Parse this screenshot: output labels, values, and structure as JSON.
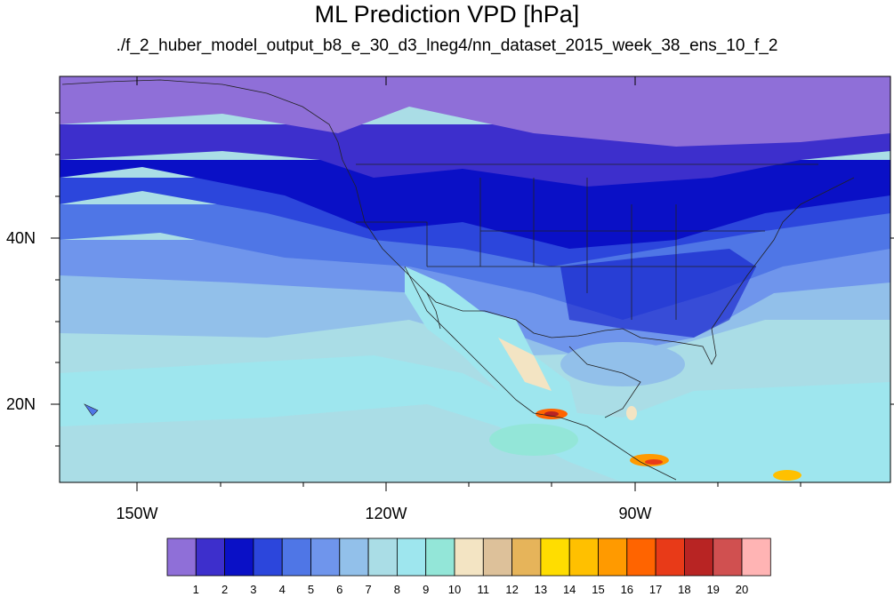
{
  "title": "ML Prediction VPD [hPa]",
  "subtitle": "./f_2_huber_model_output_b8_e_30_d3_lneg4/nn_dataset_2015_week_38_ens_10_f_2",
  "axes": {
    "lat_labels": [
      "40N",
      "20N"
    ],
    "lon_labels": [
      "150W",
      "120W",
      "90W"
    ]
  },
  "colorbar": {
    "labels": [
      "1",
      "2",
      "3",
      "4",
      "5",
      "6",
      "7",
      "8",
      "9",
      "10",
      "11",
      "12",
      "13",
      "14",
      "15",
      "16",
      "17",
      "18",
      "19",
      "20"
    ],
    "colors": [
      "#8f6fd8",
      "#3d2fcc",
      "#0a10c6",
      "#2c46dc",
      "#4f76e6",
      "#6f95ec",
      "#92c0ea",
      "#aadde6",
      "#9ee6ee",
      "#93e6d8",
      "#f3e4c3",
      "#ddc19a",
      "#e6b45a",
      "#ffdd00",
      "#ffc000",
      "#ff9a00",
      "#ff6400",
      "#e83a18",
      "#b82423",
      "#d05050",
      "#ffb4b4"
    ]
  }
}
